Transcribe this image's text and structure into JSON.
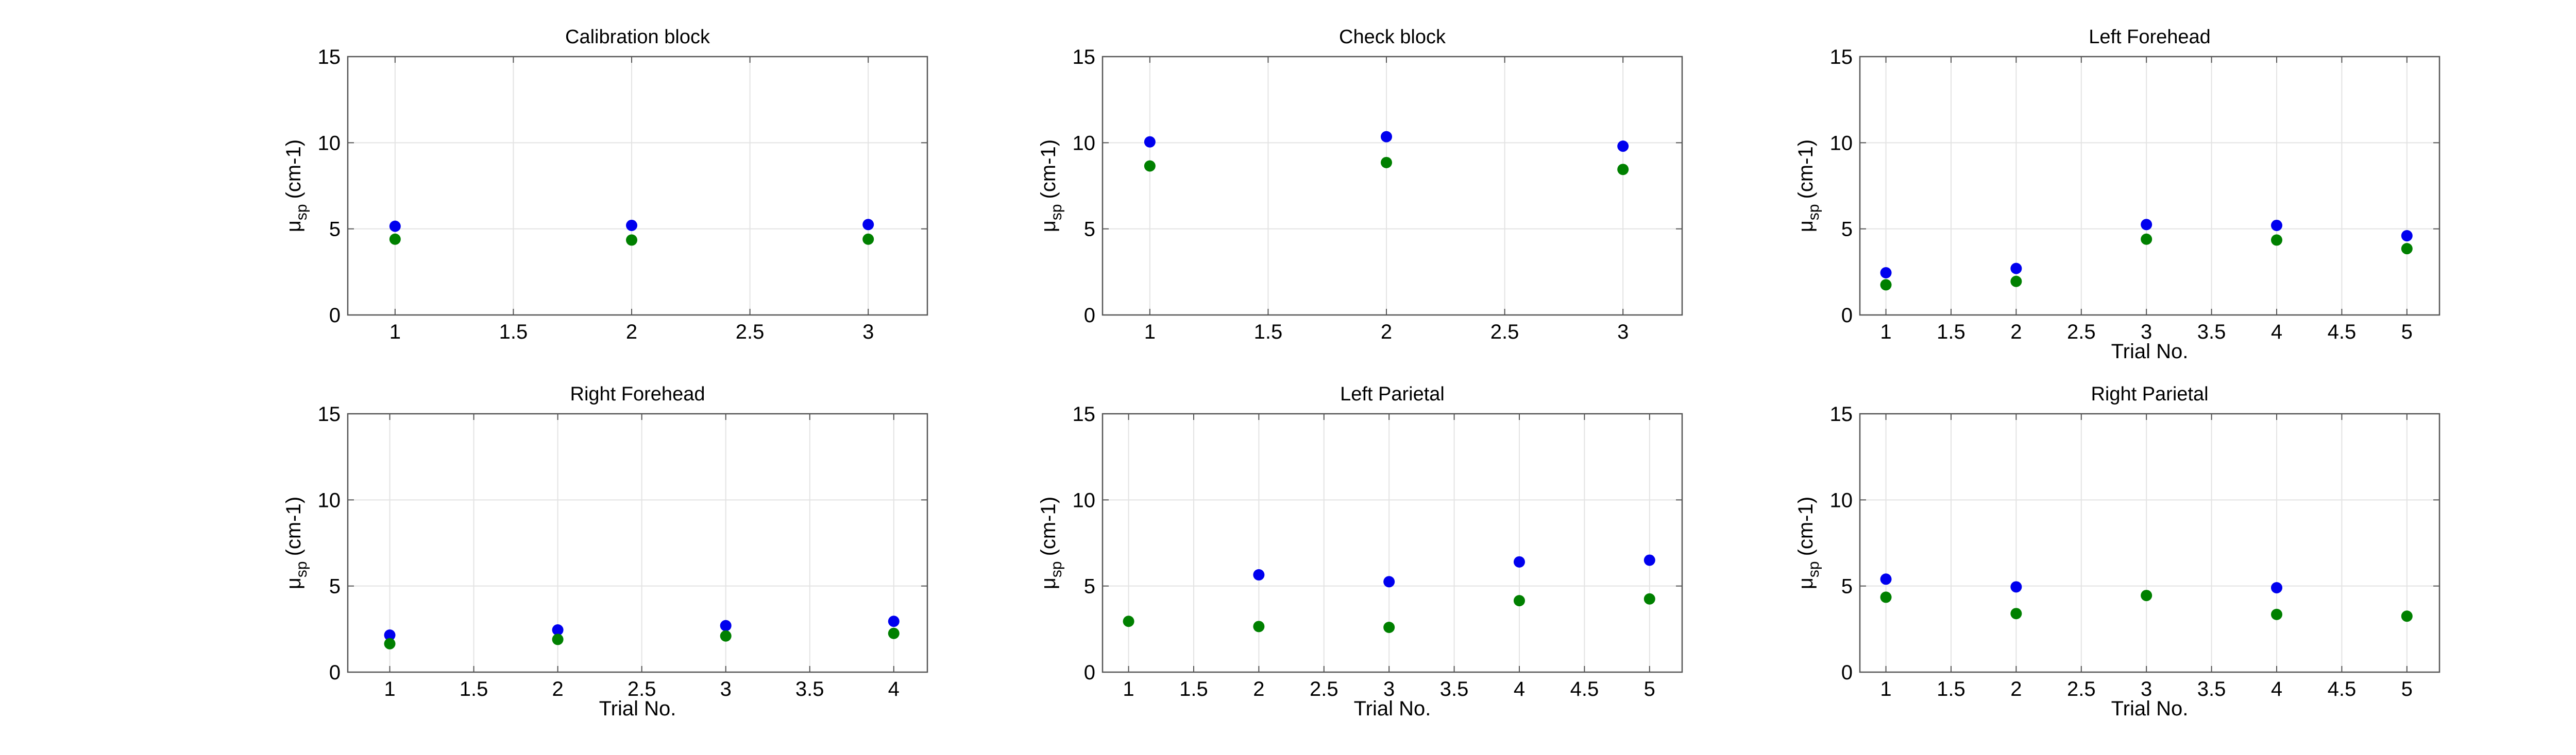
{
  "chart_data": [
    {
      "type": "scatter",
      "title": "Calibration block",
      "xlabel": "",
      "ylabel": "μ",
      "ylabel_subscript": "sp",
      "ylabel_suffix": "(cm-1)",
      "xlim": [
        0.8,
        3.25
      ],
      "ylim": [
        0,
        15
      ],
      "xticks": [
        1,
        1.5,
        2,
        2.5,
        3
      ],
      "yticks": [
        0,
        5,
        10,
        15
      ],
      "grid": true,
      "series": [
        {
          "color": "#0000ee",
          "points": [
            [
              1,
              5.15
            ],
            [
              2,
              5.2
            ],
            [
              3,
              5.25
            ]
          ]
        },
        {
          "color": "#008000",
          "points": [
            [
              1,
              4.4
            ],
            [
              2,
              4.35
            ],
            [
              3,
              4.4
            ]
          ]
        }
      ]
    },
    {
      "type": "scatter",
      "title": "Check block",
      "xlabel": "",
      "ylabel": "μ",
      "ylabel_subscript": "sp",
      "ylabel_suffix": "(cm-1)",
      "xlim": [
        0.8,
        3.25
      ],
      "ylim": [
        0,
        15
      ],
      "xticks": [
        1,
        1.5,
        2,
        2.5,
        3
      ],
      "yticks": [
        0,
        5,
        10,
        15
      ],
      "grid": true,
      "series": [
        {
          "color": "#0000ee",
          "points": [
            [
              1,
              10.05
            ],
            [
              2,
              10.35
            ],
            [
              3,
              9.8
            ]
          ]
        },
        {
          "color": "#008000",
          "points": [
            [
              1,
              8.65
            ],
            [
              2,
              8.85
            ],
            [
              3,
              8.45
            ]
          ]
        }
      ]
    },
    {
      "type": "scatter",
      "title": "Left Forehead",
      "xlabel": "Trial No.",
      "ylabel": "μ",
      "ylabel_subscript": "sp",
      "ylabel_suffix": "(cm-1)",
      "xlim": [
        0.8,
        5.25
      ],
      "ylim": [
        0,
        15
      ],
      "xticks": [
        1,
        1.5,
        2,
        2.5,
        3,
        3.5,
        4,
        4.5,
        5
      ],
      "yticks": [
        0,
        5,
        10,
        15
      ],
      "grid": true,
      "series": [
        {
          "color": "#0000ee",
          "points": [
            [
              1,
              2.45
            ],
            [
              2,
              2.7
            ],
            [
              3,
              5.25
            ],
            [
              4,
              5.2
            ],
            [
              5,
              4.6
            ]
          ]
        },
        {
          "color": "#008000",
          "points": [
            [
              1,
              1.75
            ],
            [
              2,
              1.95
            ],
            [
              3,
              4.4
            ],
            [
              4,
              4.35
            ],
            [
              5,
              3.85
            ]
          ]
        }
      ]
    },
    {
      "type": "scatter",
      "title": "Right Forehead",
      "xlabel": "Trial No.",
      "ylabel": "μ",
      "ylabel_subscript": "sp",
      "ylabel_suffix": "(cm-1)",
      "xlim": [
        0.75,
        4.2
      ],
      "ylim": [
        0,
        15
      ],
      "xticks": [
        1,
        1.5,
        2,
        2.5,
        3,
        3.5,
        4
      ],
      "yticks": [
        0,
        5,
        10,
        15
      ],
      "grid": true,
      "series": [
        {
          "color": "#0000ee",
          "points": [
            [
              1,
              2.15
            ],
            [
              2,
              2.45
            ],
            [
              3,
              2.7
            ],
            [
              4,
              2.95
            ]
          ]
        },
        {
          "color": "#008000",
          "points": [
            [
              1,
              1.65
            ],
            [
              2,
              1.9
            ],
            [
              3,
              2.1
            ],
            [
              4,
              2.25
            ]
          ]
        }
      ]
    },
    {
      "type": "scatter",
      "title": "Left Parietal",
      "xlabel": "Trial No.",
      "ylabel": "μ",
      "ylabel_subscript": "sp",
      "ylabel_suffix": "(cm-1)",
      "xlim": [
        0.8,
        5.25
      ],
      "ylim": [
        0,
        15
      ],
      "xticks": [
        1,
        1.5,
        2,
        2.5,
        3,
        3.5,
        4,
        4.5,
        5
      ],
      "yticks": [
        0,
        5,
        10,
        15
      ],
      "grid": true,
      "series": [
        {
          "color": "#0000ee",
          "points": [
            [
              2,
              5.65
            ],
            [
              3,
              5.25
            ],
            [
              4,
              6.4
            ],
            [
              5,
              6.5
            ]
          ]
        },
        {
          "color": "#008000",
          "points": [
            [
              1,
              2.95
            ],
            [
              2,
              2.65
            ],
            [
              3,
              2.6
            ],
            [
              4,
              4.15
            ],
            [
              5,
              4.25
            ]
          ]
        }
      ]
    },
    {
      "type": "scatter",
      "title": "Right Parietal",
      "xlabel": "Trial No.",
      "ylabel": "μ",
      "ylabel_subscript": "sp",
      "ylabel_suffix": "(cm-1)",
      "xlim": [
        0.8,
        5.25
      ],
      "ylim": [
        0,
        15
      ],
      "xticks": [
        1,
        1.5,
        2,
        2.5,
        3,
        3.5,
        4,
        4.5,
        5
      ],
      "yticks": [
        0,
        5,
        10,
        15
      ],
      "grid": true,
      "series": [
        {
          "color": "#0000ee",
          "points": [
            [
              1,
              5.4
            ],
            [
              2,
              4.95
            ],
            [
              4,
              4.9
            ]
          ]
        },
        {
          "color": "#008000",
          "points": [
            [
              1,
              4.35
            ],
            [
              2,
              3.4
            ],
            [
              3,
              4.45
            ],
            [
              4,
              3.35
            ],
            [
              5,
              3.25
            ]
          ]
        }
      ]
    }
  ]
}
